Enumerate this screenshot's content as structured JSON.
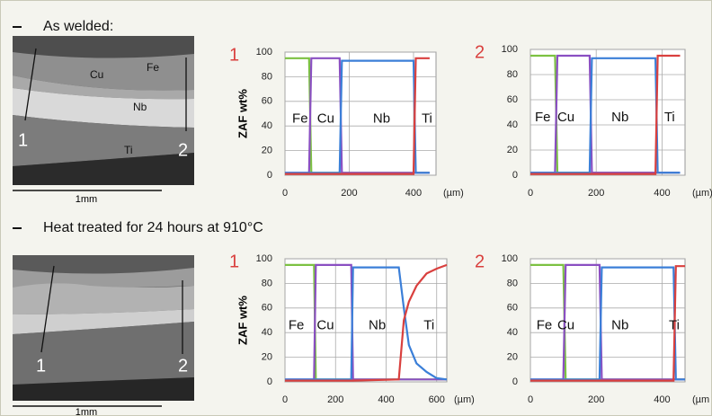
{
  "sections": [
    {
      "heading": "As welded:",
      "image_labels": [
        "Cu",
        "Fe",
        "Nb",
        "Ti",
        "1",
        "2"
      ],
      "scale": "1mm"
    },
    {
      "heading": "Heat treated for 24 hours at 910°C",
      "image_labels": [
        "1",
        "2"
      ],
      "scale": "1mm"
    }
  ],
  "chart_data": [
    {
      "type": "line",
      "label": "1",
      "ylabel": "ZAF wt%",
      "x_unit": "(µm)",
      "x": [
        0,
        75,
        82,
        170,
        177,
        400,
        407,
        450
      ],
      "series": [
        {
          "name": "Fe",
          "color": "#7cc142",
          "values": [
            95,
            95,
            2,
            2,
            2,
            2,
            2,
            2
          ]
        },
        {
          "name": "Cu",
          "color": "#8a4fc2",
          "values": [
            2,
            2,
            95,
            95,
            2,
            2,
            2,
            2
          ]
        },
        {
          "name": "Nb",
          "color": "#3b7fd8",
          "values": [
            2,
            2,
            2,
            2,
            93,
            93,
            2,
            2
          ]
        },
        {
          "name": "Ti",
          "color": "#d9403e",
          "values": [
            1,
            1,
            1,
            1,
            1,
            1,
            95,
            95
          ]
        }
      ],
      "xlim": [
        0,
        470
      ],
      "xticks": [
        0,
        200,
        400
      ],
      "ylim": [
        0,
        100
      ],
      "yticks": [
        0,
        20,
        40,
        60,
        80,
        100
      ],
      "grid": true
    },
    {
      "type": "line",
      "label": "2",
      "x_unit": "(µm)",
      "x": [
        0,
        75,
        82,
        180,
        187,
        380,
        387,
        455
      ],
      "series": [
        {
          "name": "Fe",
          "color": "#7cc142",
          "values": [
            95,
            95,
            2,
            2,
            2,
            2,
            2,
            2
          ]
        },
        {
          "name": "Cu",
          "color": "#8a4fc2",
          "values": [
            2,
            2,
            95,
            95,
            2,
            2,
            2,
            2
          ]
        },
        {
          "name": "Nb",
          "color": "#3b7fd8",
          "values": [
            2,
            2,
            2,
            2,
            93,
            93,
            2,
            2
          ]
        },
        {
          "name": "Ti",
          "color": "#d9403e",
          "values": [
            1,
            1,
            1,
            1,
            1,
            1,
            95,
            95
          ]
        }
      ],
      "xlim": [
        0,
        470
      ],
      "xticks": [
        0,
        200,
        400
      ],
      "ylim": [
        0,
        100
      ],
      "yticks": [
        0,
        20,
        40,
        60,
        80,
        100
      ],
      "grid": true
    },
    {
      "type": "line",
      "label": "1",
      "ylabel": "ZAF wt%",
      "x_unit": "(µm)",
      "x": [
        0,
        115,
        122,
        262,
        269,
        450,
        470,
        490,
        520,
        560,
        600,
        640
      ],
      "series": [
        {
          "name": "Fe",
          "color": "#7cc142",
          "values": [
            95,
            95,
            2,
            2,
            2,
            2,
            2,
            2,
            2,
            2,
            2,
            2
          ]
        },
        {
          "name": "Cu",
          "color": "#8a4fc2",
          "values": [
            2,
            2,
            95,
            95,
            2,
            2,
            2,
            2,
            2,
            2,
            2,
            2
          ]
        },
        {
          "name": "Nb",
          "color": "#3b7fd8",
          "values": [
            2,
            2,
            2,
            2,
            93,
            93,
            60,
            30,
            15,
            8,
            3,
            2
          ]
        },
        {
          "name": "Ti",
          "color": "#d9403e",
          "values": [
            1,
            1,
            1,
            1,
            1,
            2,
            50,
            65,
            78,
            88,
            92,
            95
          ]
        }
      ],
      "xlim": [
        0,
        640
      ],
      "xticks": [
        0,
        200,
        400,
        600
      ],
      "ylim": [
        0,
        100
      ],
      "yticks": [
        0,
        20,
        40,
        60,
        80,
        100
      ],
      "grid": true
    },
    {
      "type": "line",
      "label": "2",
      "x_unit": "(µm",
      "x": [
        0,
        100,
        107,
        210,
        217,
        435,
        442,
        470
      ],
      "series": [
        {
          "name": "Fe",
          "color": "#7cc142",
          "values": [
            95,
            95,
            2,
            2,
            2,
            2,
            2,
            2
          ]
        },
        {
          "name": "Cu",
          "color": "#8a4fc2",
          "values": [
            2,
            2,
            95,
            95,
            2,
            2,
            2,
            2
          ]
        },
        {
          "name": "Nb",
          "color": "#3b7fd8",
          "values": [
            2,
            2,
            2,
            2,
            93,
            93,
            2,
            2
          ]
        },
        {
          "name": "Ti",
          "color": "#d9403e",
          "values": [
            1,
            1,
            1,
            1,
            1,
            1,
            94,
            94
          ]
        }
      ],
      "xlim": [
        0,
        470
      ],
      "xticks": [
        0,
        200,
        400
      ],
      "ylim": [
        0,
        100
      ],
      "yticks": [
        0,
        20,
        40,
        60,
        80,
        100
      ],
      "grid": true
    }
  ]
}
